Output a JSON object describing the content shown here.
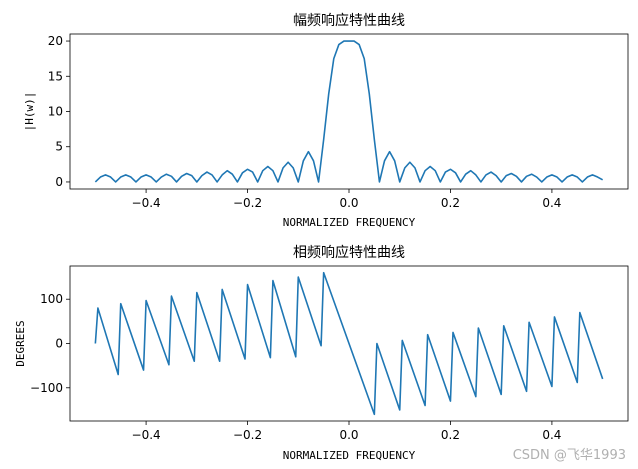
{
  "watermark": "CSDN @飞华1993",
  "chart_data": [
    {
      "type": "line",
      "title": "幅频响应特性曲线",
      "xlabel": "NORMALIZED FREQUENCY",
      "ylabel": "|H(w)|",
      "xlim": [
        -0.55,
        0.55
      ],
      "ylim": [
        -1,
        21
      ],
      "xticks": [
        -0.4,
        -0.2,
        0.0,
        0.2,
        0.4
      ],
      "xtick_labels": [
        "−0.4",
        "−0.2",
        "0.0",
        "0.2",
        "0.4"
      ],
      "yticks": [
        0,
        5,
        10,
        15,
        20
      ],
      "ytick_labels": [
        "0",
        "5",
        "10",
        "15",
        "20"
      ],
      "grid": false,
      "line_color": "#1f77b4",
      "series": [
        {
          "x": [
            -0.5,
            -0.49,
            -0.48,
            -0.47,
            -0.46,
            -0.45,
            -0.44,
            -0.43,
            -0.42,
            -0.41,
            -0.4,
            -0.39,
            -0.38,
            -0.37,
            -0.36,
            -0.35,
            -0.34,
            -0.33,
            -0.32,
            -0.31,
            -0.3,
            -0.29,
            -0.28,
            -0.27,
            -0.26,
            -0.25,
            -0.24,
            -0.23,
            -0.22,
            -0.21,
            -0.2,
            -0.19,
            -0.18,
            -0.17,
            -0.16,
            -0.15,
            -0.14,
            -0.13,
            -0.12,
            -0.11,
            -0.1,
            -0.09,
            -0.08,
            -0.07,
            -0.06,
            -0.05,
            -0.04,
            -0.03,
            -0.02,
            -0.01,
            0.0,
            0.01,
            0.02,
            0.03,
            0.04,
            0.05,
            0.06,
            0.07,
            0.08,
            0.09,
            0.1,
            0.11,
            0.12,
            0.13,
            0.14,
            0.15,
            0.16,
            0.17,
            0.18,
            0.19,
            0.2,
            0.21,
            0.22,
            0.23,
            0.24,
            0.25,
            0.26,
            0.27,
            0.28,
            0.29,
            0.3,
            0.31,
            0.32,
            0.33,
            0.34,
            0.35,
            0.36,
            0.37,
            0.38,
            0.39,
            0.4,
            0.41,
            0.42,
            0.43,
            0.44,
            0.45,
            0.46,
            0.47,
            0.48,
            0.49,
            0.5
          ],
          "y": [
            0.0,
            0.7,
            1.0,
            0.7,
            0.0,
            0.7,
            1.0,
            0.7,
            0.0,
            0.7,
            1.0,
            0.7,
            0.0,
            0.7,
            1.1,
            0.8,
            0.0,
            0.8,
            1.2,
            0.9,
            0.0,
            0.9,
            1.4,
            1.0,
            0.0,
            1.0,
            1.6,
            1.1,
            0.0,
            1.3,
            1.8,
            1.4,
            0.0,
            1.6,
            2.2,
            1.6,
            0.0,
            2.0,
            2.8,
            2.0,
            0.0,
            3.0,
            4.3,
            3.0,
            0.0,
            6.0,
            12.5,
            17.5,
            19.5,
            20.0,
            20.0,
            20.0,
            19.5,
            17.5,
            12.5,
            6.0,
            0.0,
            3.0,
            4.3,
            3.0,
            0.0,
            2.0,
            2.8,
            2.0,
            0.0,
            1.6,
            2.2,
            1.6,
            0.0,
            1.4,
            1.8,
            1.3,
            0.0,
            1.1,
            1.6,
            1.0,
            0.0,
            1.0,
            1.4,
            0.9,
            0.0,
            0.9,
            1.2,
            0.8,
            0.0,
            0.8,
            1.1,
            0.7,
            0.0,
            0.7,
            1.0,
            0.7,
            0.0,
            0.7,
            1.0,
            0.7,
            0.0,
            0.7,
            1.0,
            0.7,
            0.3
          ]
        }
      ]
    },
    {
      "type": "line",
      "title": "相频响应特性曲线",
      "xlabel": "NORMALIZED FREQUENCY",
      "ylabel": "DEGREES",
      "xlim": [
        -0.55,
        0.55
      ],
      "ylim": [
        -175,
        175
      ],
      "xticks": [
        -0.4,
        -0.2,
        0.0,
        0.2,
        0.4
      ],
      "xtick_labels": [
        "−0.4",
        "−0.2",
        "0.0",
        "0.2",
        "0.4"
      ],
      "yticks": [
        -100,
        0,
        100
      ],
      "ytick_labels": [
        "−100",
        "0",
        "100"
      ],
      "grid": false,
      "line_color": "#1f77b4",
      "series": [
        {
          "x": [
            -0.5,
            -0.495,
            -0.455,
            -0.45,
            -0.405,
            -0.4,
            -0.355,
            -0.35,
            -0.305,
            -0.3,
            -0.255,
            -0.25,
            -0.205,
            -0.2,
            -0.155,
            -0.15,
            -0.105,
            -0.1,
            -0.055,
            -0.05,
            0.05,
            0.055,
            0.1,
            0.105,
            0.15,
            0.155,
            0.2,
            0.205,
            0.25,
            0.255,
            0.3,
            0.305,
            0.35,
            0.355,
            0.4,
            0.405,
            0.45,
            0.455,
            0.5
          ],
          "y": [
            0,
            80,
            -70,
            90,
            -60,
            97,
            -48,
            107,
            -40,
            115,
            -40,
            122,
            -35,
            133,
            -32,
            142,
            -30,
            150,
            -5,
            160,
            -160,
            0,
            -150,
            7,
            -140,
            20,
            -130,
            25,
            -120,
            35,
            -115,
            40,
            -108,
            48,
            -97,
            60,
            -88,
            70,
            -80
          ]
        }
      ]
    }
  ]
}
